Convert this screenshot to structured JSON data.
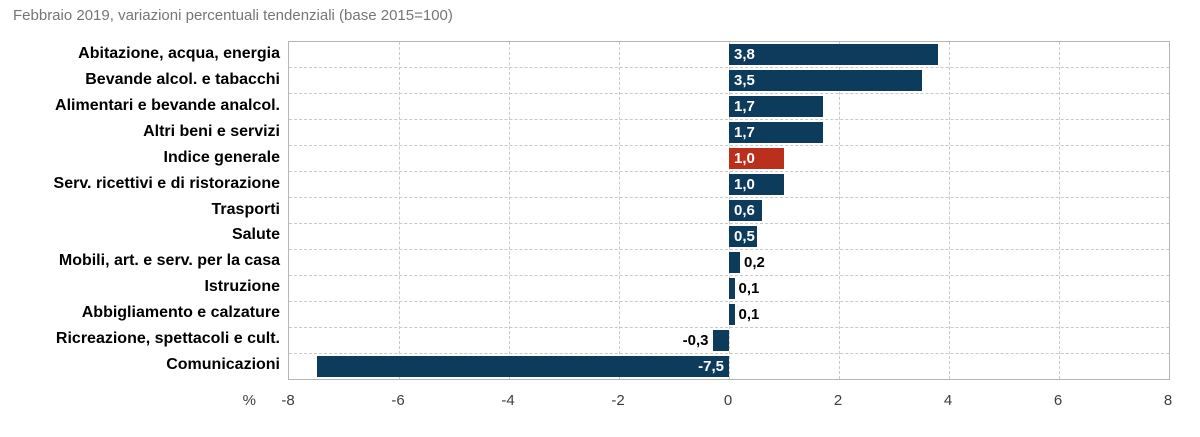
{
  "title": "Febbraio 2019, variazioni percentuali tendenziali (base 2015=100)",
  "chart_data": {
    "type": "bar",
    "orientation": "horizontal",
    "title": "Febbraio 2019, variazioni percentuali tendenziali (base 2015=100)",
    "unit_label": "%",
    "categories": [
      "Abitazione, acqua, energia",
      "Bevande alcol. e tabacchi",
      "Alimentari e bevande analcol.",
      "Altri beni e servizi",
      "Indice generale",
      "Serv. ricettivi e di ristorazione",
      "Trasporti",
      "Salute",
      "Mobili, art. e serv. per la casa",
      "Istruzione",
      "Abbigliamento e calzature",
      "Ricreazione, spettacoli e cult.",
      "Comunicazioni"
    ],
    "values": [
      3.8,
      3.5,
      1.7,
      1.7,
      1.0,
      1.0,
      0.6,
      0.5,
      0.2,
      0.1,
      0.1,
      -0.3,
      -7.5
    ],
    "value_labels": [
      "3,8",
      "3,5",
      "1,7",
      "1,7",
      "1,0",
      "1,0",
      "0,6",
      "0,5",
      "0,2",
      "0,1",
      "0,1",
      "-0,3",
      "-7,5"
    ],
    "label_placement": [
      "inside",
      "inside",
      "inside",
      "inside",
      "inside",
      "inside",
      "inside",
      "inside",
      "outside",
      "outside",
      "outside",
      "outside",
      "inside"
    ],
    "highlight_index": 4,
    "colors": {
      "bar": "#0d3b5c",
      "highlight": "#bb2f1d",
      "value_inside": "#ffffff",
      "value_outside": "#000000",
      "grid": "#c9c9c9",
      "border": "#b5b5b5",
      "title": "#767676",
      "axis_text": "#3d3d3d"
    },
    "xlim": [
      -8,
      8
    ],
    "x_ticks": [
      "-8",
      "-6",
      "-4",
      "-2",
      "0",
      "2",
      "4",
      "6",
      "8"
    ],
    "x_tick_values": [
      -8,
      -6,
      -4,
      -2,
      0,
      2,
      4,
      6,
      8
    ],
    "grid": "dashed",
    "legend": "none"
  }
}
